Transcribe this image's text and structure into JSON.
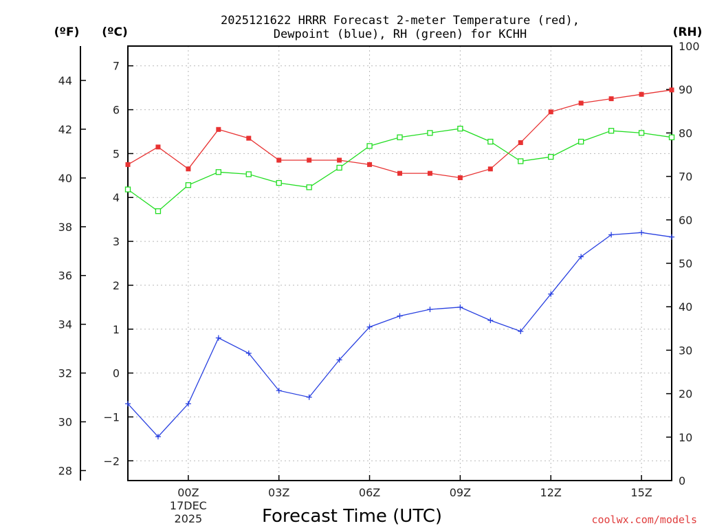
{
  "chart_data": {
    "type": "line",
    "title": "2025121622 HRRR Forecast 2-meter Temperature (red),",
    "subtitle": "Dewpoint (blue), RH (green) for KCHH",
    "xlabel": "Forecast Time (UTC)",
    "left_unit_f": "(ºF)",
    "left_unit_c": "(ºC)",
    "right_unit": "(RH)",
    "credit": "coolwx.com/models",
    "x": [
      -2,
      -1,
      0,
      1,
      2,
      3,
      4,
      5,
      6,
      7,
      8,
      9,
      10,
      11,
      12,
      13,
      14,
      15,
      16
    ],
    "xlim": [
      -2,
      16
    ],
    "x_ticks": [
      {
        "x": 0,
        "label": "00Z",
        "date_line1": "17DEC",
        "date_line2": "2025"
      },
      {
        "x": 3,
        "label": "03Z"
      },
      {
        "x": 6,
        "label": "06Z"
      },
      {
        "x": 9,
        "label": "09Z"
      },
      {
        "x": 12,
        "label": "12Z"
      },
      {
        "x": 15,
        "label": "15Z"
      }
    ],
    "ylim_c": [
      -2.45,
      7.45
    ],
    "c_ticks": [
      -2,
      -1,
      0,
      1,
      2,
      3,
      4,
      5,
      6,
      7
    ],
    "f_ticks": [
      28,
      30,
      32,
      34,
      36,
      38,
      40,
      42,
      44
    ],
    "ylim_rh": [
      0,
      100
    ],
    "rh_ticks": [
      0,
      10,
      20,
      30,
      40,
      50,
      60,
      70,
      80,
      90,
      100
    ],
    "grid": true,
    "series": [
      {
        "name": "Temperature",
        "color": "#e83232",
        "axis": "c",
        "marker": "filled-square",
        "values": [
          4.75,
          5.15,
          4.65,
          5.55,
          5.35,
          4.85,
          4.85,
          4.85,
          4.75,
          4.55,
          4.55,
          4.45,
          4.65,
          5.25,
          5.95,
          6.15,
          6.25,
          6.35,
          6.45
        ]
      },
      {
        "name": "Dewpoint",
        "color": "#2840e0",
        "axis": "c",
        "marker": "plus",
        "values": [
          -0.7,
          -1.45,
          -0.7,
          0.8,
          0.45,
          -0.4,
          -0.55,
          0.3,
          1.05,
          1.3,
          1.45,
          1.5,
          1.2,
          0.95,
          1.8,
          2.65,
          3.15,
          3.2,
          3.1
        ]
      },
      {
        "name": "RH",
        "color": "#22dd22",
        "axis": "rh",
        "marker": "open-square",
        "values": [
          67,
          62,
          68,
          71,
          70.5,
          68.5,
          67.5,
          72,
          77,
          79,
          80,
          81,
          78,
          73.5,
          74.5,
          78,
          80.5,
          80,
          79
        ]
      }
    ]
  }
}
